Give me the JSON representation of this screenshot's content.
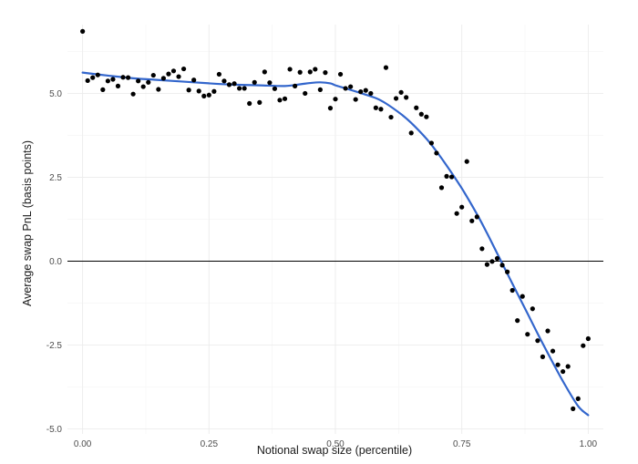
{
  "chart_data": {
    "type": "scatter",
    "title": "",
    "xlabel": "Notional swap size (percentile)",
    "ylabel": "Average swap PnL (basis points)",
    "xlim": [
      -0.03,
      1.03
    ],
    "ylim": [
      -5.15,
      7.05
    ],
    "x_ticks": [
      0.0,
      0.25,
      0.5,
      0.75,
      1.0
    ],
    "x_tick_labels": [
      "0.00",
      "0.25",
      "0.50",
      "0.75",
      "1.00"
    ],
    "x_minor_ticks": [
      0.125,
      0.375,
      0.625,
      0.875
    ],
    "y_ticks": [
      -5.0,
      -2.5,
      0.0,
      2.5,
      5.0
    ],
    "y_tick_labels": [
      "-5.0",
      "-2.5",
      "0.0",
      "2.5",
      "5.0"
    ],
    "y_minor_ticks": [
      -3.75,
      -1.25,
      1.25,
      3.75,
      6.25
    ],
    "hline": 0,
    "grid": true,
    "legend": "none",
    "colors": {
      "points": "#000000",
      "smooth": "#3366cc",
      "zero_line": "#000000"
    },
    "series": [
      {
        "type": "scatter",
        "x": [
          0.0,
          0.01,
          0.02,
          0.03,
          0.04,
          0.05,
          0.06,
          0.07,
          0.08,
          0.09,
          0.1,
          0.11,
          0.12,
          0.13,
          0.14,
          0.15,
          0.16,
          0.17,
          0.18,
          0.19,
          0.2,
          0.21,
          0.22,
          0.23,
          0.24,
          0.25,
          0.26,
          0.27,
          0.28,
          0.29,
          0.3,
          0.31,
          0.32,
          0.33,
          0.34,
          0.35,
          0.36,
          0.37,
          0.38,
          0.39,
          0.4,
          0.41,
          0.42,
          0.43,
          0.44,
          0.45,
          0.46,
          0.47,
          0.48,
          0.49,
          0.5,
          0.51,
          0.52,
          0.53,
          0.54,
          0.55,
          0.56,
          0.57,
          0.58,
          0.59,
          0.6,
          0.61,
          0.62,
          0.63,
          0.64,
          0.65,
          0.66,
          0.67,
          0.68,
          0.69,
          0.7,
          0.71,
          0.72,
          0.73,
          0.74,
          0.75,
          0.76,
          0.77,
          0.78,
          0.79,
          0.8,
          0.81,
          0.82,
          0.83,
          0.84,
          0.85,
          0.86,
          0.87,
          0.88,
          0.89,
          0.9,
          0.91,
          0.92,
          0.93,
          0.94,
          0.95,
          0.96,
          0.97,
          0.98,
          0.99,
          1.0
        ],
        "y": [
          6.85,
          5.38,
          5.47,
          5.55,
          5.11,
          5.37,
          5.42,
          5.22,
          5.48,
          5.47,
          4.98,
          5.37,
          5.2,
          5.33,
          5.54,
          5.12,
          5.45,
          5.58,
          5.67,
          5.5,
          5.73,
          5.1,
          5.4,
          5.07,
          4.92,
          4.95,
          5.06,
          5.57,
          5.37,
          5.26,
          5.29,
          5.15,
          5.15,
          4.7,
          5.33,
          4.73,
          5.64,
          5.32,
          5.14,
          4.8,
          4.84,
          5.72,
          5.22,
          5.63,
          5.0,
          5.64,
          5.72,
          5.11,
          5.62,
          4.56,
          4.83,
          5.57,
          5.15,
          5.2,
          4.82,
          5.05,
          5.09,
          5.0,
          4.57,
          4.53,
          5.77,
          4.29,
          4.85,
          5.03,
          4.88,
          3.82,
          4.57,
          4.38,
          4.3,
          3.52,
          3.22,
          2.19,
          2.53,
          2.51,
          1.42,
          1.61,
          2.97,
          1.2,
          1.32,
          0.37,
          -0.1,
          -0.01,
          0.08,
          -0.12,
          -0.32,
          -0.87,
          -1.77,
          -1.05,
          -2.18,
          -1.42,
          -2.37,
          -2.85,
          -2.08,
          -2.68,
          -3.09,
          -3.29,
          -3.14,
          -4.4,
          -4.1,
          -2.52,
          -2.31
        ]
      },
      {
        "type": "smooth",
        "x": [
          0.0,
          0.05,
          0.1,
          0.15,
          0.2,
          0.25,
          0.3,
          0.35,
          0.4,
          0.43,
          0.45,
          0.47,
          0.49,
          0.5,
          0.52,
          0.55,
          0.58,
          0.6,
          0.63,
          0.65,
          0.68,
          0.7,
          0.72,
          0.75,
          0.78,
          0.8,
          0.82,
          0.85,
          0.88,
          0.9,
          0.92,
          0.95,
          0.98,
          1.0
        ],
        "y": [
          5.62,
          5.53,
          5.45,
          5.4,
          5.35,
          5.3,
          5.26,
          5.24,
          5.22,
          5.27,
          5.31,
          5.33,
          5.3,
          5.24,
          5.15,
          5.01,
          4.86,
          4.7,
          4.38,
          4.12,
          3.65,
          3.27,
          2.85,
          2.17,
          1.4,
          0.83,
          0.23,
          -0.67,
          -1.56,
          -2.16,
          -2.74,
          -3.58,
          -4.32,
          -4.59
        ]
      }
    ]
  }
}
